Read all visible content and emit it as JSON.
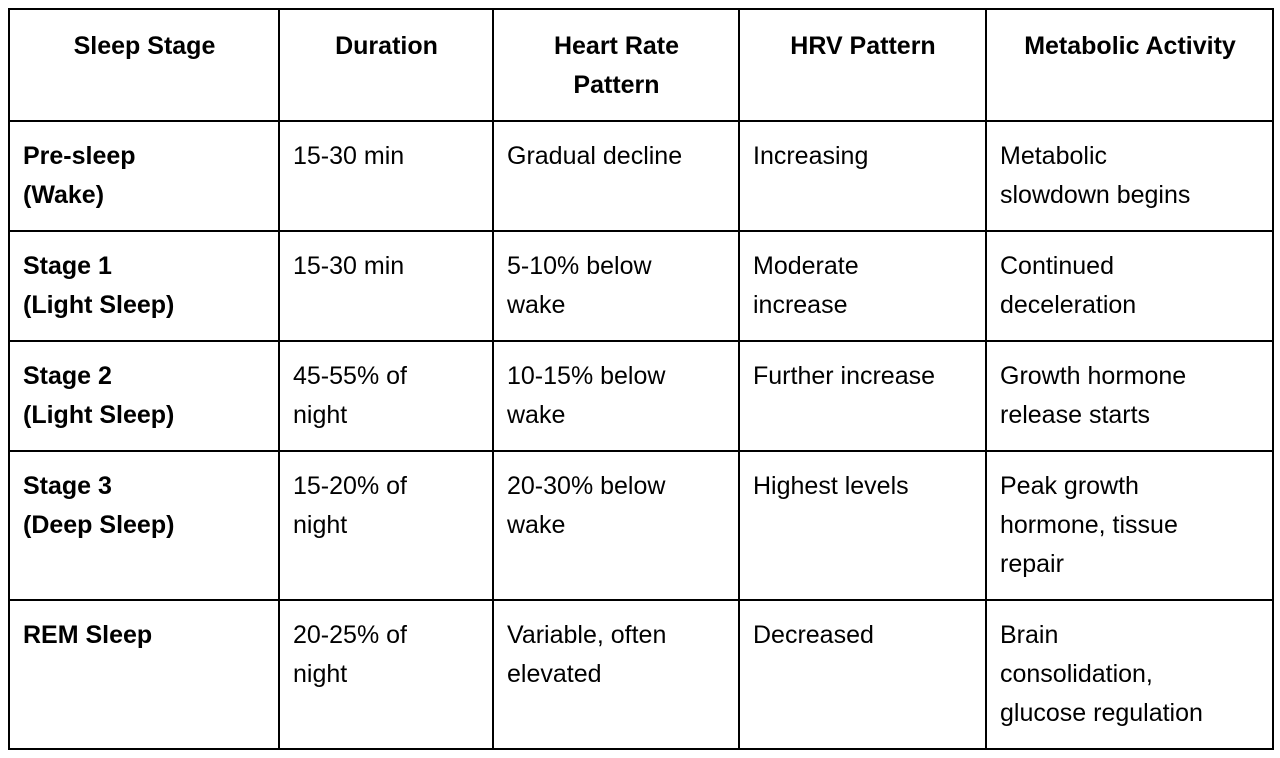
{
  "table": {
    "headers": [
      "Sleep Stage",
      "Duration",
      "Heart Rate\nPattern",
      "HRV Pattern",
      "Metabolic Activity"
    ],
    "rows": [
      {
        "stage": "Pre-sleep\n(Wake)",
        "duration": "15-30 min",
        "heart_rate": "Gradual decline",
        "hrv": "Increasing",
        "metabolic": "Metabolic\nslowdown begins"
      },
      {
        "stage": "Stage 1\n(Light Sleep)",
        "duration": "15-30 min",
        "heart_rate": "5-10% below\nwake",
        "hrv": "Moderate\nincrease",
        "metabolic": "Continued\ndeceleration"
      },
      {
        "stage": "Stage 2\n(Light Sleep)",
        "duration": "45-55% of\nnight",
        "heart_rate": "10-15% below\nwake",
        "hrv": "Further increase",
        "metabolic": "Growth hormone\nrelease starts"
      },
      {
        "stage": "Stage 3\n(Deep Sleep)",
        "duration": "15-20% of\nnight",
        "heart_rate": "20-30% below\nwake",
        "hrv": "Highest levels",
        "metabolic": "Peak growth\nhormone, tissue\nrepair"
      },
      {
        "stage": "REM Sleep",
        "duration": "20-25% of\nnight",
        "heart_rate": "Variable, often\nelevated",
        "hrv": "Decreased",
        "metabolic": "Brain\nconsolidation,\nglucose regulation"
      }
    ]
  }
}
